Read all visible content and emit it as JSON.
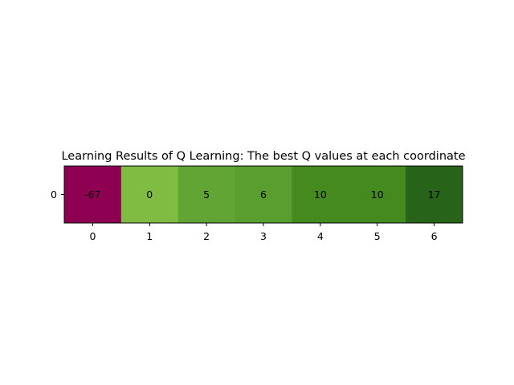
{
  "chart_data": {
    "type": "heatmap",
    "title": "Learning Results of Q Learning: The best Q values at each coordinate",
    "xlabel": "",
    "ylabel": "",
    "x_ticks": [
      "0",
      "1",
      "2",
      "3",
      "4",
      "5",
      "6"
    ],
    "y_ticks": [
      "0"
    ],
    "values": [
      [
        -67,
        0,
        5,
        6,
        10,
        10,
        17
      ]
    ],
    "cell_labels": [
      [
        "-67",
        "0",
        "5",
        "6",
        "10",
        "10",
        "17"
      ]
    ],
    "cell_colors": [
      [
        "#8e0152",
        "#7fbc41",
        "#62a534",
        "#5a9e2f",
        "#448a1f",
        "#448a1f",
        "#276419"
      ]
    ],
    "colormap": "PiYG",
    "grid": false,
    "legend": "none"
  }
}
